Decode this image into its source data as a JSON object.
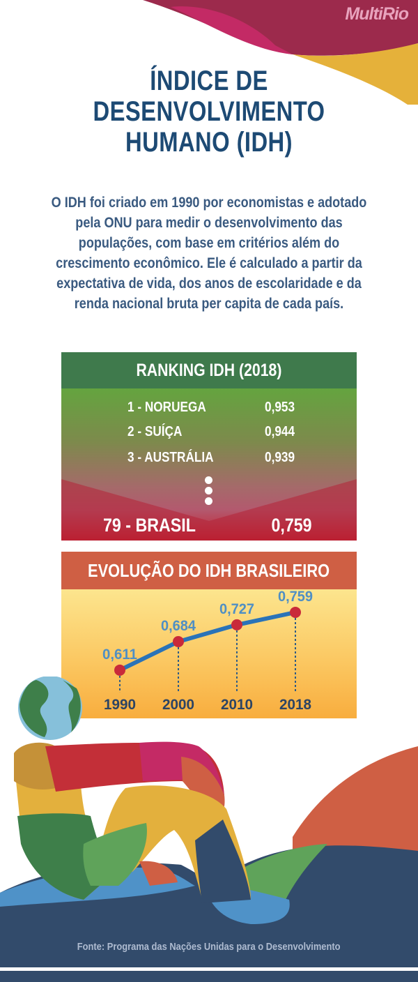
{
  "brand": {
    "logo": "MultiRio"
  },
  "header": {
    "title_lines": [
      "ÍNDICE DE",
      "DESENVOLVIMENTO",
      "HUMANO (IDH)"
    ]
  },
  "intro": {
    "lines": [
      "O IDH foi criado em 1990 por economistas e adotado",
      "pela ONU para medir o desenvolvimento das",
      "populações, com base em critérios além do",
      "crescimento econômico. Ele é calculado a partir da",
      "expectativa de vida, dos anos de escolaridade e da",
      "renda nacional bruta per capita de cada país."
    ]
  },
  "ranking": {
    "title": "RANKING IDH (2018)",
    "items": [
      {
        "label": "1 - NORUEGA",
        "value": "0,953"
      },
      {
        "label": "2 - SUÍÇA",
        "value": "0,944"
      },
      {
        "label": "3 - AUSTRÁLIA",
        "value": "0,939"
      }
    ],
    "highlight": {
      "label": "79 - BRASIL",
      "value": "0,759"
    }
  },
  "colors": {
    "title": "#1d4a74",
    "ranking_header": "#3f7a4c",
    "evolution_header": "#cf5f44",
    "line": "#2a73b8",
    "marker": "#c92a3a",
    "value_label": "#4f8fc4",
    "year_label": "#2d4463",
    "footer_bg": "#324b6b"
  },
  "chart_data": {
    "type": "line",
    "title": "EVOLUÇÃO DO IDH BRASILEIRO",
    "categories": [
      "1990",
      "2000",
      "2010",
      "2018"
    ],
    "series": [
      {
        "name": "IDH Brasil",
        "values": [
          0.611,
          0.684,
          0.727,
          0.759
        ],
        "labels": [
          "0,611",
          "0,684",
          "0,727",
          "0,759"
        ]
      }
    ],
    "xlabel": "",
    "ylabel": "",
    "grid": false
  },
  "footer": {
    "source": "Fonte: Programa das Nações Unidas para o Desenvolvimento"
  }
}
